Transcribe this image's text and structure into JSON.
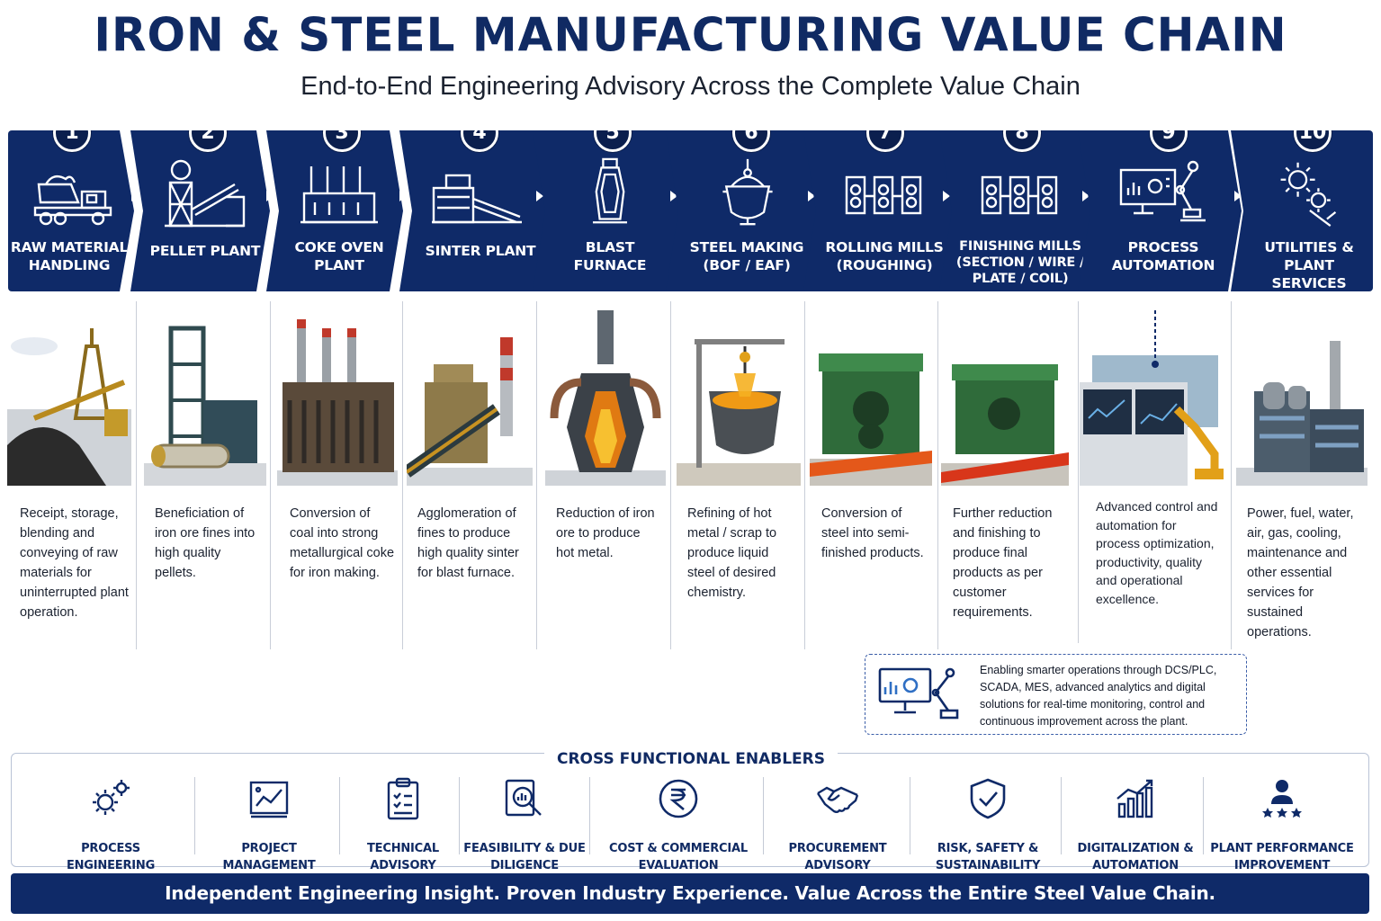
{
  "header": {
    "title": "IRON & STEEL MANUFACTURING VALUE CHAIN",
    "subtitle": "End-to-End Engineering Advisory Across the Complete Value Chain"
  },
  "stages": [
    {
      "number": "1",
      "label": "RAW MATERIAL HANDLING",
      "icon": "dump-truck-icon",
      "description": "Receipt, storage, blending and conveying of raw materials for uninterrupted plant operation."
    },
    {
      "number": "2",
      "label": "PELLET PLANT",
      "icon": "pellet-plant-icon",
      "description": "Beneficiation of iron ore fines into high quality pellets."
    },
    {
      "number": "3",
      "label": "COKE OVEN PLANT",
      "icon": "coke-oven-icon",
      "description": "Conversion of coal into strong metallurgical coke for iron making."
    },
    {
      "number": "4",
      "label": "SINTER PLANT",
      "icon": "sinter-plant-icon",
      "description": "Agglomeration of fines to produce high quality sinter for blast furnace."
    },
    {
      "number": "5",
      "label": "BLAST FURNACE",
      "icon": "blast-furnace-icon",
      "description": "Reduction of iron ore to produce hot metal."
    },
    {
      "number": "6",
      "label": "STEEL MAKING (BOF / EAF)",
      "icon": "ladle-icon",
      "description": "Refining of hot metal / scrap to produce liquid steel of desired chemistry."
    },
    {
      "number": "7",
      "label": "ROLLING MILLS (ROUGHING)",
      "icon": "rolling-mill-icon",
      "description": "Conversion of steel into semi-finished products."
    },
    {
      "number": "8",
      "label": "FINISHING MILLS (SECTION / WIRE / PLATE / COIL)",
      "icon": "finishing-mill-icon",
      "description": "Further reduction and finishing to produce final products as per customer requirements."
    },
    {
      "number": "9",
      "label": "PROCESS AUTOMATION",
      "icon": "automation-icon",
      "description": "Advanced control and automation for process optimization, productivity, quality and operational excellence."
    },
    {
      "number": "10",
      "label": "UTILITIES & PLANT SERVICES",
      "icon": "gears-wrench-icon",
      "description": "Power, fuel, water, air, gas, cooling, maintenance and other essential services for sustained operations."
    }
  ],
  "callout": {
    "text": "Enabling smarter operations through DCS/PLC, SCADA, MES, advanced analytics and digital solutions for real-time monitoring, control and continuous improvement across the plant.",
    "icon": "monitor-robot-arm-icon"
  },
  "enablers": {
    "title": "CROSS FUNCTIONAL ENABLERS",
    "items": [
      {
        "label": "PROCESS ENGINEERING",
        "icon": "gears-icon"
      },
      {
        "label": "PROJECT MANAGEMENT",
        "icon": "project-board-icon"
      },
      {
        "label": "TECHNICAL ADVISORY",
        "icon": "clipboard-icon"
      },
      {
        "label": "FEASIBILITY & DUE DILIGENCE",
        "icon": "magnifier-chart-icon"
      },
      {
        "label": "COST & COMMERCIAL EVALUATION",
        "icon": "rupee-icon"
      },
      {
        "label": "PROCUREMENT ADVISORY",
        "icon": "handshake-icon"
      },
      {
        "label": "RISK, SAFETY & SUSTAINABILITY",
        "icon": "shield-check-icon"
      },
      {
        "label": "DIGITALIZATION & AUTOMATION",
        "icon": "growth-chart-icon"
      },
      {
        "label": "PLANT PERFORMANCE IMPROVEMENT",
        "icon": "person-stars-icon"
      }
    ]
  },
  "footer": {
    "text": "Independent Engineering Insight. Proven Industry Experience. Value Across the Entire Steel Value Chain."
  },
  "colors": {
    "navy": "#0f2a68",
    "navy_dark": "#0b1f4e",
    "title": "#102a63",
    "callout_border": "#3b5ea8"
  }
}
